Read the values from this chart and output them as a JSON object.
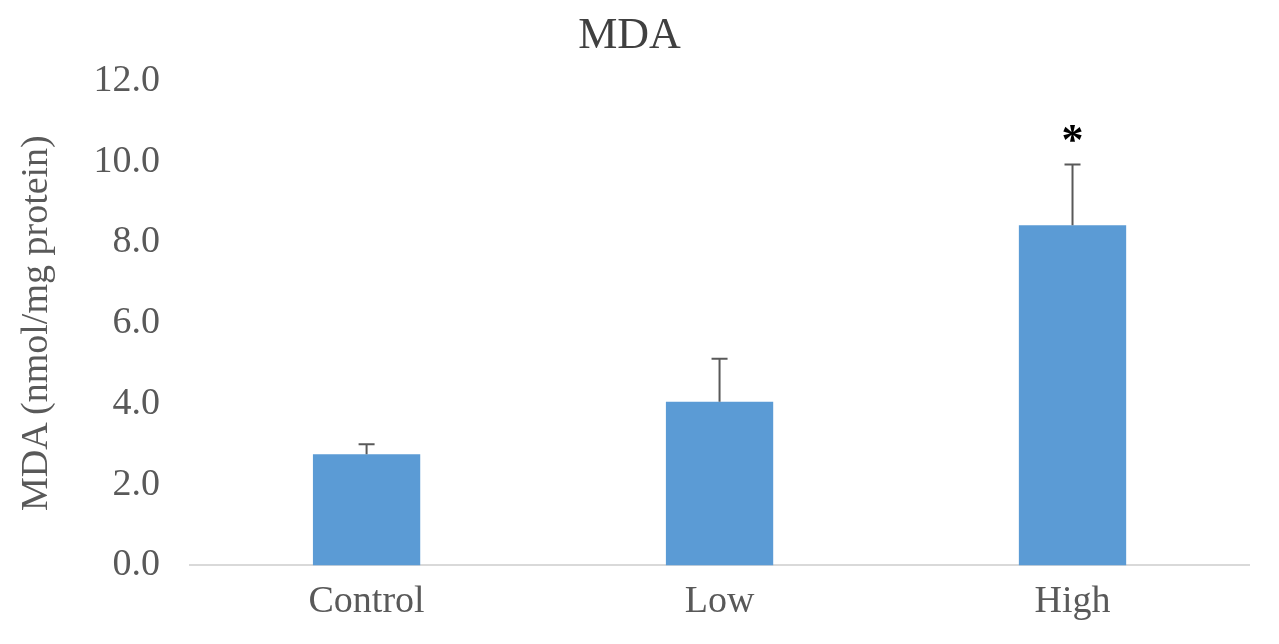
{
  "chart_data": {
    "type": "bar",
    "title": "MDA",
    "ylabel": "MDA (nmol/mg protein)",
    "categories": [
      "Control",
      "Low",
      "High"
    ],
    "values": [
      2.75,
      4.05,
      8.42
    ],
    "errors": [
      [
        2.75,
        3.0
      ],
      [
        4.05,
        5.12
      ],
      [
        8.42,
        9.93
      ]
    ],
    "color": "#5b9bd5",
    "ylim": [
      0,
      12
    ],
    "yticks": [
      {
        "value": 0,
        "label": "0.0"
      },
      {
        "value": 2,
        "label": "2.0"
      },
      {
        "value": 4,
        "label": "4.0"
      },
      {
        "value": 6,
        "label": "6.0"
      },
      {
        "value": 8,
        "label": "8.0"
      },
      {
        "value": 10,
        "label": "10.0"
      },
      {
        "value": 12,
        "label": "12.0"
      }
    ],
    "annotations": [
      "*"
    ],
    "grid": false,
    "legend": false
  }
}
